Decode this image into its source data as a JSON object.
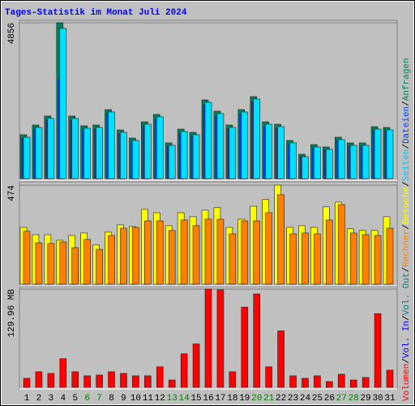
{
  "title": "Tages-Statistik im Monat Juli 2024",
  "legend": [
    {
      "text": "Volumen",
      "color": "#ff0000"
    },
    {
      "text": "Vol. In",
      "color": "#0000ff"
    },
    {
      "text": "Vol. Out",
      "color": "#008080"
    },
    {
      "text": "Rechner",
      "color": "#ff8000"
    },
    {
      "text": "Besuche",
      "color": "#ffff00"
    },
    {
      "text": "Seiten",
      "color": "#00c0ff"
    },
    {
      "text": "Dateien",
      "color": "#0040ff"
    },
    {
      "text": "Anfragen",
      "color": "#00805c"
    }
  ],
  "separator": "/",
  "chart_data": [
    {
      "type": "bar",
      "categories": [
        "1",
        "2",
        "3",
        "4",
        "5",
        "6",
        "7",
        "8",
        "9",
        "10",
        "11",
        "12",
        "13",
        "14",
        "15",
        "16",
        "17",
        "18",
        "19",
        "20",
        "21",
        "22",
        "23",
        "24",
        "25",
        "26",
        "27",
        "28",
        "29",
        "30",
        "31"
      ],
      "series": [
        {
          "name": "Anfragen",
          "color": "#00805c",
          "values": [
            1366,
            1670,
            1950,
            4856,
            1950,
            1645,
            1670,
            2150,
            1518,
            1265,
            1770,
            2000,
            1113,
            1543,
            1442,
            2453,
            2100,
            1670,
            2150,
            2555,
            1770,
            1695,
            1189,
            759,
            1062,
            987,
            1290,
            1113,
            1113,
            1619,
            1594
          ]
        },
        {
          "name": "Dateien",
          "color": "#0040ff",
          "values": [
            1250,
            1540,
            1820,
            3110,
            1820,
            1520,
            1540,
            2010,
            1400,
            1150,
            1640,
            1860,
            1010,
            1420,
            1330,
            2300,
            1960,
            1540,
            2010,
            2400,
            1640,
            1570,
            1080,
            680,
            960,
            890,
            1180,
            1010,
            1010,
            1500,
            1470
          ]
        },
        {
          "name": "Seiten",
          "color": "#00e0ff",
          "values": [
            1290,
            1595,
            1875,
            4680,
            1875,
            1570,
            1595,
            2075,
            1443,
            1190,
            1695,
            1925,
            1038,
            1468,
            1367,
            2378,
            2025,
            1595,
            2075,
            2480,
            1695,
            1620,
            1114,
            684,
            987,
            912,
            1215,
            1038,
            1038,
            1544,
            1519
          ]
        }
      ],
      "ylim": [
        0,
        4856
      ],
      "yticks": [
        4856
      ]
    },
    {
      "type": "bar",
      "categories": [
        "1",
        "2",
        "3",
        "4",
        "5",
        "6",
        "7",
        "8",
        "9",
        "10",
        "11",
        "12",
        "13",
        "14",
        "15",
        "16",
        "17",
        "18",
        "19",
        "20",
        "21",
        "22",
        "23",
        "24",
        "25",
        "26",
        "27",
        "28",
        "29",
        "30",
        "31"
      ],
      "series": [
        {
          "name": "Besuche",
          "color": "#ffff00",
          "values": [
            272,
            237,
            237,
            210,
            233,
            245,
            187,
            249,
            284,
            276,
            358,
            342,
            280,
            342,
            323,
            354,
            366,
            272,
            311,
            373,
            405,
            474,
            272,
            280,
            272,
            370,
            393,
            265,
            257,
            257,
            323
          ]
        },
        {
          "name": "Rechner",
          "color": "#ff8000",
          "values": [
            253,
            198,
            195,
            202,
            175,
            214,
            167,
            233,
            268,
            272,
            303,
            303,
            257,
            307,
            280,
            311,
            311,
            241,
            303,
            303,
            342,
            428,
            241,
            245,
            241,
            307,
            381,
            245,
            237,
            233,
            268
          ]
        }
      ],
      "ylim": [
        0,
        474
      ],
      "yticks": [
        474
      ]
    },
    {
      "type": "bar",
      "categories": [
        "1",
        "2",
        "3",
        "4",
        "5",
        "6",
        "7",
        "8",
        "9",
        "10",
        "11",
        "12",
        "13",
        "14",
        "15",
        "16",
        "17",
        "18",
        "19",
        "20",
        "21",
        "22",
        "23",
        "24",
        "25",
        "26",
        "27",
        "28",
        "29",
        "30",
        "31"
      ],
      "category_colors": [
        "#000000",
        "#000000",
        "#000000",
        "#000000",
        "#000000",
        "#008000",
        "#008000",
        "#000000",
        "#000000",
        "#000000",
        "#000000",
        "#000000",
        "#008000",
        "#008000",
        "#000000",
        "#000000",
        "#000000",
        "#000000",
        "#000000",
        "#008000",
        "#008000",
        "#000000",
        "#000000",
        "#000000",
        "#000000",
        "#000000",
        "#008000",
        "#008000",
        "#000000",
        "#000000",
        "#000000"
      ],
      "series": [
        {
          "name": "Volumen",
          "color": "#ff0000",
          "values": [
            11.9,
            20.6,
            18.4,
            37.9,
            20.6,
            15.2,
            16.2,
            20.6,
            18.4,
            15.2,
            15.2,
            27.1,
            9.7,
            44.4,
            57.4,
            129.96,
            129,
            20.6,
            106.1,
            123.5,
            27.1,
            74.7,
            15.2,
            11.9,
            15.2,
            7.6,
            17.3,
            9.7,
            13,
            97.5,
            22.7
          ]
        }
      ],
      "ylim": [
        0,
        129.96
      ],
      "yticks": [
        {
          "value": 129.96,
          "label": "129.96 MB"
        }
      ]
    }
  ]
}
